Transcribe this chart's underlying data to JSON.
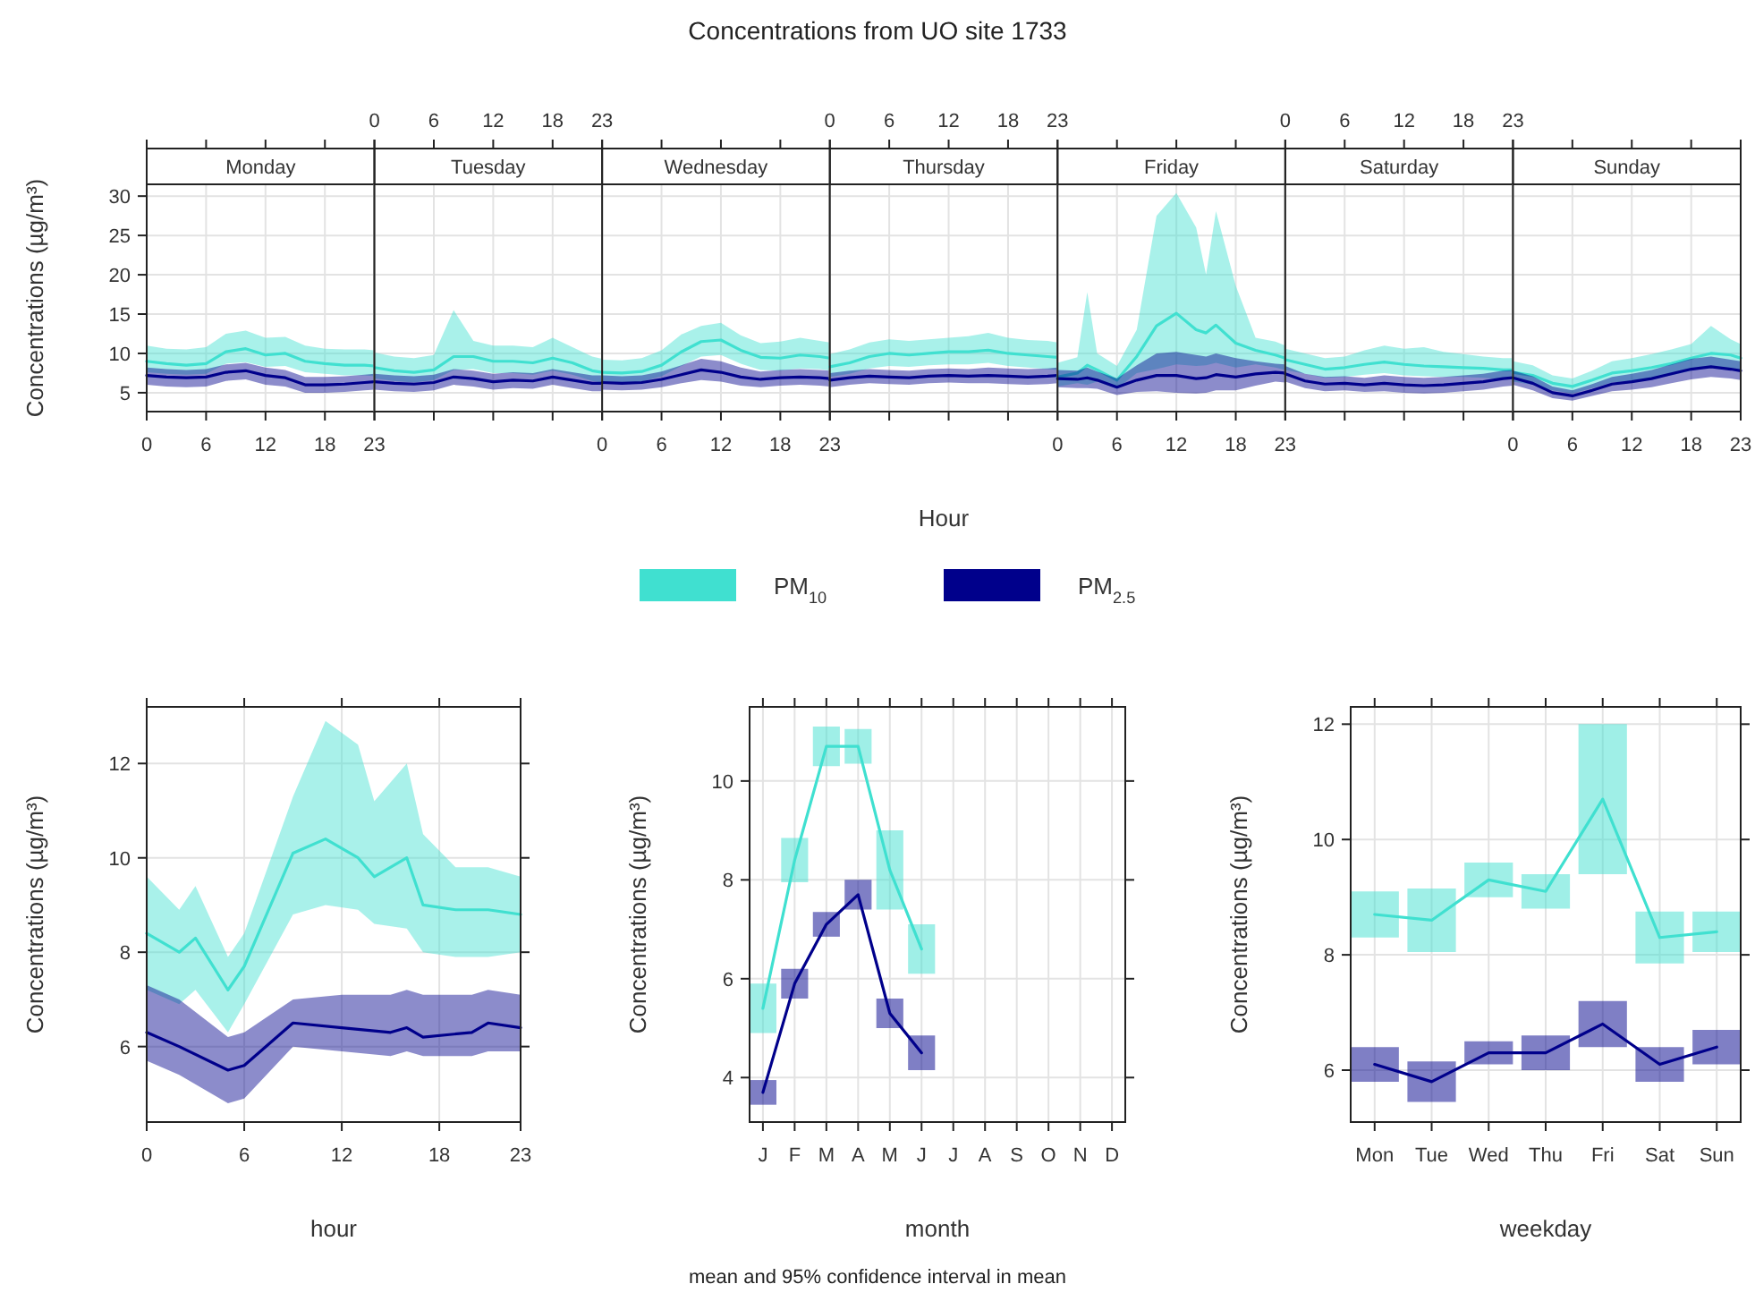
{
  "chart_data": [
    {
      "type": "line",
      "title": "Monday",
      "ylabel": "Concentrations (µg/m³)",
      "annotations": [
        "Concentrations from UO site 1733"
      ],
      "x": [
        0,
        2,
        4,
        6,
        8,
        10,
        12,
        14,
        16,
        18,
        20,
        22,
        23
      ],
      "xlim": [
        0,
        23
      ],
      "xticks": [
        0,
        6,
        12,
        18,
        23
      ],
      "ylim": [
        2.6,
        31.5
      ],
      "yticks": [
        5,
        10,
        15,
        20,
        25,
        30
      ],
      "grid": true,
      "series": [
        {
          "color": "#40e0d0",
          "values": [
            9.0,
            8.7,
            8.5,
            8.7,
            10.2,
            10.6,
            9.8,
            10.0,
            9.0,
            8.7,
            8.5,
            8.5,
            8.4
          ],
          "upper": [
            11.0,
            10.6,
            10.5,
            10.8,
            12.5,
            12.9,
            12.0,
            12.1,
            11.0,
            10.6,
            10.5,
            10.5,
            10.4
          ],
          "lower": [
            7.6,
            7.4,
            7.3,
            7.4,
            8.7,
            8.9,
            8.3,
            8.4,
            7.6,
            7.4,
            7.2,
            7.2,
            7.1
          ]
        },
        {
          "color": "#00008b",
          "values": [
            7.2,
            7.0,
            6.9,
            7.0,
            7.6,
            7.8,
            7.2,
            6.9,
            6.0,
            6.0,
            6.1,
            6.3,
            6.4
          ],
          "upper": [
            8.2,
            8.0,
            7.9,
            8.0,
            8.6,
            8.8,
            8.2,
            7.9,
            7.0,
            7.0,
            7.1,
            7.3,
            7.4
          ],
          "lower": [
            6.0,
            5.8,
            5.7,
            5.8,
            6.5,
            6.7,
            6.0,
            5.8,
            5.0,
            5.0,
            5.1,
            5.3,
            5.4
          ]
        }
      ]
    },
    {
      "type": "line",
      "title": "Tuesday",
      "x": [
        0,
        2,
        4,
        6,
        8,
        10,
        12,
        14,
        16,
        18,
        20,
        22,
        23
      ],
      "xlim": [
        0,
        23
      ],
      "x2lim": [
        0,
        23
      ],
      "x2ticks": [
        0,
        6,
        12,
        18,
        23
      ],
      "ylim": [
        2.6,
        31.5
      ],
      "yticks": [
        5,
        10,
        15,
        20,
        25,
        30
      ],
      "tick_labels": "x",
      "grid": true,
      "series": [
        {
          "color": "#40e0d0",
          "values": [
            8.2,
            7.8,
            7.6,
            7.9,
            9.6,
            9.6,
            9.0,
            9.0,
            8.8,
            9.4,
            8.8,
            7.8,
            7.6
          ],
          "upper": [
            10.1,
            9.6,
            9.4,
            9.8,
            15.5,
            11.6,
            11.0,
            11.0,
            10.8,
            12.0,
            10.8,
            9.6,
            9.3
          ],
          "lower": [
            6.8,
            6.5,
            6.3,
            6.6,
            7.9,
            8.0,
            7.5,
            7.5,
            7.3,
            7.8,
            7.3,
            6.5,
            6.3
          ]
        },
        {
          "color": "#00008b",
          "values": [
            6.4,
            6.2,
            6.1,
            6.3,
            7.0,
            6.8,
            6.4,
            6.6,
            6.5,
            7.0,
            6.6,
            6.2,
            6.2
          ],
          "upper": [
            7.4,
            7.2,
            7.1,
            7.3,
            8.0,
            7.8,
            7.4,
            7.6,
            7.5,
            8.0,
            7.6,
            7.2,
            7.2
          ],
          "lower": [
            5.4,
            5.2,
            5.1,
            5.3,
            6.0,
            5.8,
            5.4,
            5.6,
            5.5,
            6.0,
            5.6,
            5.2,
            5.2
          ]
        }
      ]
    },
    {
      "type": "line",
      "title": "Wednesday",
      "x": [
        0,
        2,
        4,
        6,
        8,
        10,
        12,
        14,
        16,
        18,
        20,
        22,
        23
      ],
      "xlim": [
        0,
        23
      ],
      "xticks": [
        0,
        6,
        12,
        18,
        23
      ],
      "ylim": [
        2.6,
        31.5
      ],
      "yticks": [
        5,
        10,
        15,
        20,
        25,
        30
      ],
      "tick_labels": "x",
      "grid": true,
      "series": [
        {
          "color": "#40e0d0",
          "values": [
            7.6,
            7.5,
            7.7,
            8.5,
            10.2,
            11.5,
            11.7,
            10.4,
            9.5,
            9.4,
            9.8,
            9.6,
            9.4
          ],
          "upper": [
            9.2,
            9.1,
            9.4,
            10.4,
            12.4,
            13.5,
            13.9,
            12.3,
            11.3,
            11.5,
            12.0,
            11.6,
            11.4
          ],
          "lower": [
            6.3,
            6.2,
            6.4,
            7.1,
            8.4,
            9.6,
            9.8,
            8.7,
            7.9,
            7.8,
            8.1,
            8.0,
            7.8
          ]
        },
        {
          "color": "#00008b",
          "values": [
            6.3,
            6.2,
            6.3,
            6.7,
            7.3,
            7.9,
            7.6,
            7.0,
            6.7,
            6.9,
            7.0,
            6.9,
            6.8
          ],
          "upper": [
            7.2,
            7.1,
            7.2,
            7.7,
            8.5,
            9.3,
            9.0,
            8.2,
            7.7,
            7.9,
            8.0,
            7.9,
            7.8
          ],
          "lower": [
            5.4,
            5.3,
            5.4,
            5.7,
            6.2,
            6.6,
            6.4,
            5.9,
            5.7,
            5.9,
            6.0,
            5.9,
            5.8
          ]
        }
      ]
    },
    {
      "type": "line",
      "title": "Thursday",
      "xlabel": "Hour",
      "legend": "bottom",
      "x": [
        0,
        2,
        4,
        6,
        8,
        10,
        12,
        14,
        16,
        18,
        20,
        22,
        23
      ],
      "xlim": [
        0,
        23
      ],
      "x2lim": [
        0,
        23
      ],
      "x2ticks": [
        0,
        6,
        12,
        18,
        23
      ],
      "ylim": [
        2.6,
        31.5
      ],
      "yticks": [
        5,
        10,
        15,
        20,
        25,
        30
      ],
      "tick_labels": "x",
      "grid": true,
      "series": [
        {
          "name": "PM$_{10}$",
          "color": "#40e0d0",
          "values": [
            8.3,
            8.8,
            9.6,
            10.0,
            9.8,
            10.0,
            10.2,
            10.2,
            10.4,
            10.0,
            9.8,
            9.6,
            9.5
          ],
          "upper": [
            9.9,
            10.5,
            11.4,
            11.8,
            11.6,
            11.8,
            12.0,
            12.2,
            12.6,
            12.0,
            11.7,
            11.6,
            11.4
          ],
          "lower": [
            7.0,
            7.4,
            8.1,
            8.4,
            8.3,
            8.5,
            8.6,
            8.6,
            8.8,
            8.4,
            8.2,
            8.0,
            7.9
          ]
        },
        {
          "name": "PM$_{2.5}$",
          "color": "#00008b",
          "values": [
            6.6,
            6.9,
            7.1,
            7.0,
            6.9,
            7.1,
            7.2,
            7.1,
            7.2,
            7.1,
            7.0,
            7.1,
            7.2
          ],
          "upper": [
            7.5,
            7.8,
            8.0,
            7.9,
            7.8,
            8.0,
            8.1,
            8.0,
            8.2,
            8.1,
            8.0,
            8.1,
            8.2
          ],
          "lower": [
            5.7,
            6.0,
            6.2,
            6.1,
            6.0,
            6.2,
            6.3,
            6.2,
            6.2,
            6.1,
            6.0,
            6.1,
            6.2
          ]
        }
      ]
    },
    {
      "type": "line",
      "title": "Friday",
      "x": [
        0,
        2,
        3,
        4,
        6,
        8,
        10,
        12,
        14,
        15,
        16,
        18,
        20,
        22,
        23
      ],
      "xlim": [
        0,
        23
      ],
      "xticks": [
        0,
        6,
        12,
        18,
        23
      ],
      "ylim": [
        2.6,
        31.5
      ],
      "yticks": [
        5,
        10,
        15,
        20,
        25,
        30
      ],
      "tick_labels": "x",
      "grid": true,
      "series": [
        {
          "color": "#40e0d0",
          "values": [
            7.0,
            7.5,
            8.5,
            7.9,
            6.6,
            9.6,
            13.5,
            15.1,
            13.0,
            12.6,
            13.6,
            11.3,
            10.4,
            9.8,
            9.4
          ],
          "upper": [
            8.8,
            9.5,
            17.8,
            10.0,
            8.4,
            13.0,
            27.5,
            30.4,
            26.0,
            20.0,
            28.1,
            18.6,
            12.0,
            11.5,
            11.0
          ],
          "lower": [
            5.8,
            6.2,
            6.0,
            6.4,
            5.5,
            7.5,
            8.0,
            8.6,
            8.4,
            8.5,
            8.8,
            8.2,
            8.6,
            8.2,
            7.9
          ]
        },
        {
          "color": "#00008b",
          "values": [
            6.8,
            6.7,
            6.9,
            6.6,
            5.7,
            6.6,
            7.2,
            7.2,
            6.8,
            6.9,
            7.3,
            7.0,
            7.4,
            7.6,
            7.5
          ],
          "upper": [
            7.9,
            7.8,
            8.2,
            7.7,
            6.8,
            8.5,
            10.0,
            10.2,
            9.8,
            9.6,
            10.0,
            9.4,
            9.0,
            8.7,
            8.6
          ],
          "lower": [
            5.7,
            5.6,
            5.6,
            5.5,
            4.7,
            5.1,
            5.2,
            5.0,
            4.9,
            5.0,
            5.3,
            5.3,
            5.9,
            6.4,
            6.3
          ]
        }
      ]
    },
    {
      "type": "line",
      "title": "Saturday",
      "x": [
        0,
        2,
        4,
        6,
        8,
        10,
        12,
        14,
        16,
        18,
        20,
        22,
        23
      ],
      "xlim": [
        0,
        23
      ],
      "x2lim": [
        0,
        23
      ],
      "x2ticks": [
        0,
        6,
        12,
        18,
        23
      ],
      "ylim": [
        2.6,
        31.5
      ],
      "yticks": [
        5,
        10,
        15,
        20,
        25,
        30
      ],
      "tick_labels": "x",
      "grid": true,
      "series": [
        {
          "color": "#40e0d0",
          "values": [
            9.2,
            8.6,
            8.0,
            8.2,
            8.6,
            8.9,
            8.6,
            8.4,
            8.3,
            8.2,
            8.1,
            7.9,
            7.9
          ],
          "upper": [
            10.6,
            10.0,
            9.4,
            9.6,
            10.4,
            11.0,
            10.6,
            10.8,
            10.2,
            9.9,
            9.6,
            9.4,
            9.4
          ],
          "lower": [
            7.9,
            7.4,
            6.9,
            7.0,
            7.3,
            7.5,
            7.2,
            7.1,
            7.0,
            7.0,
            6.9,
            6.7,
            6.7
          ]
        },
        {
          "color": "#00008b",
          "values": [
            7.4,
            6.5,
            6.1,
            6.2,
            6.0,
            6.2,
            6.0,
            5.9,
            6.0,
            6.2,
            6.4,
            6.8,
            6.9
          ],
          "upper": [
            8.4,
            7.4,
            7.0,
            7.1,
            6.9,
            7.2,
            7.0,
            6.9,
            7.0,
            7.2,
            7.4,
            7.8,
            7.9
          ],
          "lower": [
            6.4,
            5.6,
            5.2,
            5.3,
            5.1,
            5.2,
            5.0,
            4.9,
            5.0,
            5.2,
            5.4,
            5.8,
            5.9
          ]
        }
      ]
    },
    {
      "type": "line",
      "title": "Sunday",
      "x": [
        0,
        2,
        4,
        6,
        8,
        10,
        12,
        14,
        16,
        18,
        20,
        22,
        23
      ],
      "xlim": [
        0,
        23
      ],
      "xticks": [
        0,
        6,
        12,
        18,
        23
      ],
      "ylim": [
        2.6,
        31.5
      ],
      "yticks": [
        5,
        10,
        15,
        20,
        25,
        30
      ],
      "tick_labels": "x",
      "grid": true,
      "series": [
        {
          "color": "#40e0d0",
          "values": [
            7.6,
            7.2,
            6.2,
            5.8,
            6.6,
            7.5,
            7.8,
            8.2,
            8.7,
            9.4,
            10.0,
            9.8,
            9.4
          ],
          "upper": [
            9.0,
            8.5,
            7.2,
            6.8,
            7.8,
            9.0,
            9.4,
            9.9,
            10.5,
            11.2,
            13.5,
            11.8,
            11.2
          ],
          "lower": [
            6.4,
            6.0,
            5.3,
            4.9,
            5.6,
            6.3,
            6.5,
            6.8,
            7.2,
            7.8,
            8.3,
            8.1,
            7.8
          ]
        },
        {
          "color": "#00008b",
          "values": [
            6.9,
            6.2,
            5.0,
            4.6,
            5.3,
            6.1,
            6.4,
            6.8,
            7.4,
            8.0,
            8.3,
            8.0,
            7.8
          ],
          "upper": [
            7.8,
            7.1,
            5.8,
            5.3,
            6.1,
            7.0,
            7.4,
            7.9,
            8.6,
            9.3,
            9.6,
            9.2,
            9.0
          ],
          "lower": [
            6.0,
            5.3,
            4.3,
            4.0,
            4.6,
            5.2,
            5.4,
            5.7,
            6.2,
            6.7,
            7.0,
            6.8,
            6.6
          ]
        }
      ]
    },
    {
      "type": "line",
      "xlabel": "hour",
      "ylabel": "Concentrations (µg/m³)",
      "xlim": [
        0,
        23
      ],
      "xticks": [
        0,
        6,
        12,
        18,
        23
      ],
      "ylim": [
        4.4,
        13.2
      ],
      "yticks": [
        6,
        8,
        10,
        12
      ],
      "grid": true,
      "series": [
        {
          "color": "#40e0d0",
          "x": [
            0,
            2,
            3,
            5,
            6,
            9,
            11,
            13,
            14,
            16,
            17,
            19,
            21,
            23
          ],
          "values": [
            8.4,
            8.0,
            8.3,
            7.2,
            7.7,
            10.1,
            10.4,
            10.0,
            9.6,
            10.0,
            9.0,
            8.9,
            8.9,
            8.8
          ],
          "upper": [
            9.6,
            8.9,
            9.4,
            7.9,
            8.4,
            11.3,
            12.9,
            12.4,
            11.2,
            12.0,
            10.5,
            9.8,
            9.8,
            9.6
          ],
          "lower": [
            7.2,
            6.9,
            7.2,
            6.3,
            6.9,
            8.8,
            9.0,
            8.9,
            8.6,
            8.5,
            8.0,
            7.9,
            7.9,
            8.0
          ]
        },
        {
          "color": "#00008b",
          "x": [
            0,
            2,
            5,
            6,
            9,
            12,
            15,
            16,
            17,
            20,
            21,
            23
          ],
          "values": [
            6.3,
            6.0,
            5.5,
            5.6,
            6.5,
            6.4,
            6.3,
            6.4,
            6.2,
            6.3,
            6.5,
            6.4
          ],
          "upper": [
            7.3,
            7.0,
            6.2,
            6.3,
            7.0,
            7.1,
            7.1,
            7.2,
            7.1,
            7.1,
            7.2,
            7.1
          ],
          "lower": [
            5.7,
            5.4,
            4.8,
            4.9,
            6.0,
            5.9,
            5.8,
            5.9,
            5.8,
            5.8,
            5.9,
            5.9
          ]
        }
      ]
    },
    {
      "type": "line",
      "xlabel": "month",
      "ylabel": "Concentrations (µg/m³)",
      "annotations": [
        "mean and 95% confidence interval in mean"
      ],
      "categories": [
        "J",
        "F",
        "M",
        "A",
        "M",
        "J",
        "J",
        "A",
        "S",
        "O",
        "N",
        "D"
      ],
      "ylim": [
        3.1,
        11.5
      ],
      "yticks": [
        4,
        6,
        8,
        10
      ],
      "grid": true,
      "series": [
        {
          "color": "#40e0d0",
          "values": [
            5.4,
            8.4,
            10.7,
            10.7,
            8.2,
            6.6,
            null,
            null,
            null,
            null,
            null,
            null
          ],
          "errors": [
            0.5,
            0.45,
            0.4,
            0.35,
            0.8,
            0.5,
            null,
            null,
            null,
            null,
            null,
            null
          ]
        },
        {
          "color": "#00008b",
          "values": [
            3.7,
            5.9,
            7.1,
            7.7,
            5.3,
            4.5,
            null,
            null,
            null,
            null,
            null,
            null
          ],
          "errors": [
            0.25,
            0.3,
            0.25,
            0.3,
            0.3,
            0.35,
            null,
            null,
            null,
            null,
            null,
            null
          ]
        }
      ]
    },
    {
      "type": "line",
      "xlabel": "weekday",
      "ylabel": "Concentrations (µg/m³)",
      "categories": [
        "Mon",
        "Tue",
        "Wed",
        "Thu",
        "Fri",
        "Sat",
        "Sun"
      ],
      "ylim": [
        5.1,
        12.3
      ],
      "yticks": [
        6,
        8,
        10,
        12
      ],
      "grid": true,
      "series": [
        {
          "color": "#40e0d0",
          "values": [
            8.7,
            8.6,
            9.3,
            9.1,
            10.7,
            8.3,
            8.4
          ],
          "errors": [
            0.4,
            0.55,
            0.3,
            0.3,
            1.3,
            0.45,
            0.35
          ]
        },
        {
          "color": "#00008b",
          "values": [
            6.1,
            5.8,
            6.3,
            6.3,
            6.8,
            6.1,
            6.4
          ],
          "errors": [
            0.3,
            0.35,
            0.2,
            0.3,
            0.4,
            0.3,
            0.3
          ]
        }
      ]
    }
  ]
}
